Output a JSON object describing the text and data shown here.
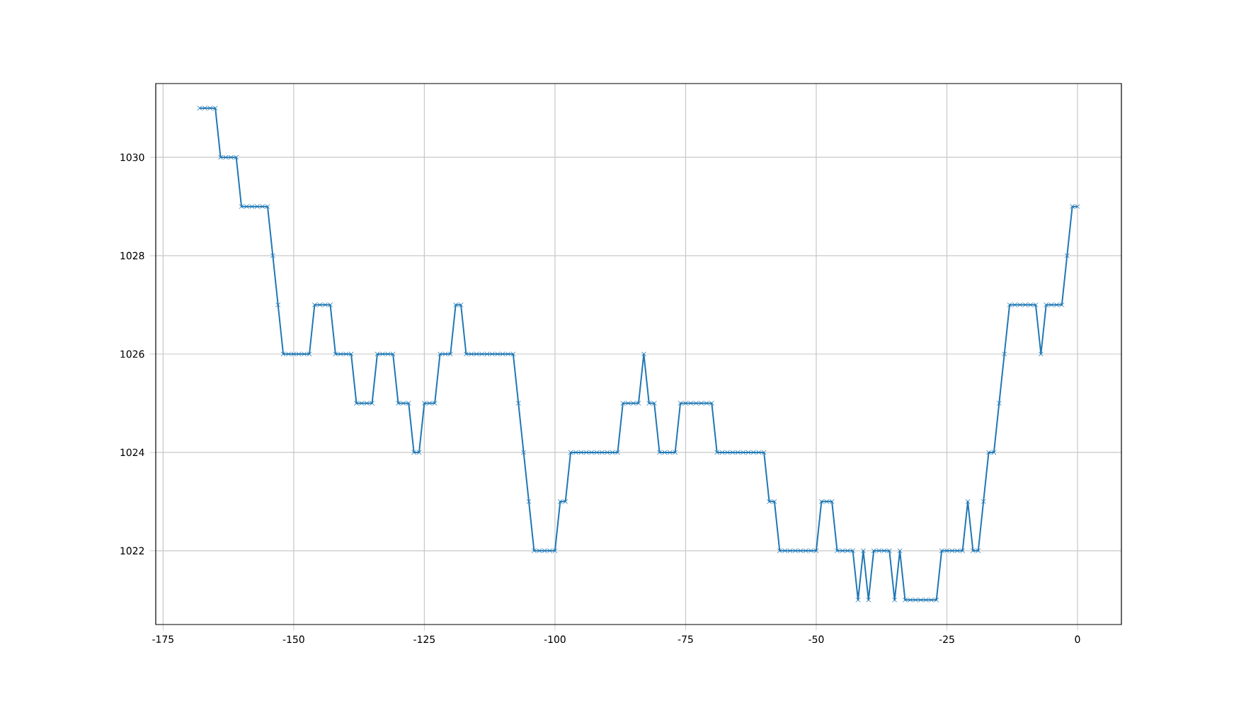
{
  "chart_data": {
    "type": "line",
    "x": [
      -168,
      -167,
      -166,
      -165,
      -164,
      -163,
      -162,
      -161,
      -160,
      -159,
      -158,
      -157,
      -156,
      -155,
      -154,
      -153,
      -152,
      -151,
      -150,
      -149,
      -148,
      -147,
      -146,
      -145,
      -144,
      -143,
      -142,
      -141,
      -140,
      -139,
      -138,
      -137,
      -136,
      -135,
      -134,
      -133,
      -132,
      -131,
      -130,
      -129,
      -128,
      -127,
      -126,
      -125,
      -124,
      -123,
      -122,
      -121,
      -120,
      -119,
      -118,
      -117,
      -116,
      -115,
      -114,
      -113,
      -112,
      -111,
      -110,
      -109,
      -108,
      -107,
      -106,
      -105,
      -104,
      -103,
      -102,
      -101,
      -100,
      -99,
      -98,
      -97,
      -96,
      -95,
      -94,
      -93,
      -92,
      -91,
      -90,
      -89,
      -88,
      -87,
      -86,
      -85,
      -84,
      -83,
      -82,
      -81,
      -80,
      -79,
      -78,
      -77,
      -76,
      -75,
      -74,
      -73,
      -72,
      -71,
      -70,
      -69,
      -68,
      -67,
      -66,
      -65,
      -64,
      -63,
      -62,
      -61,
      -60,
      -59,
      -58,
      -57,
      -56,
      -55,
      -54,
      -53,
      -52,
      -51,
      -50,
      -49,
      -48,
      -47,
      -46,
      -45,
      -44,
      -43,
      -42,
      -41,
      -40,
      -39,
      -38,
      -37,
      -36,
      -35,
      -34,
      -33,
      -32,
      -31,
      -30,
      -29,
      -28,
      -27,
      -26,
      -25,
      -24,
      -23,
      -22,
      -21,
      -20,
      -19,
      -18,
      -17,
      -16,
      -15,
      -14,
      -13,
      -12,
      -11,
      -10,
      -9,
      -8,
      -7,
      -6,
      -5,
      -4,
      -3,
      -2,
      -1,
      0
    ],
    "series": [
      {
        "color": "#1f77b4",
        "values": [
          1031,
          1031,
          1031,
          1031,
          1030,
          1030,
          1030,
          1030,
          1029,
          1029,
          1029,
          1029,
          1029,
          1029,
          1028,
          1027,
          1026,
          1026,
          1026,
          1026,
          1026,
          1026,
          1027,
          1027,
          1027,
          1027,
          1026,
          1026,
          1026,
          1026,
          1025,
          1025,
          1025,
          1025,
          1026,
          1026,
          1026,
          1026,
          1025,
          1025,
          1025,
          1024,
          1024,
          1025,
          1025,
          1025,
          1026,
          1026,
          1026,
          1027,
          1027,
          1026,
          1026,
          1026,
          1026,
          1026,
          1026,
          1026,
          1026,
          1026,
          1026,
          1025,
          1024,
          1023,
          1022,
          1022,
          1022,
          1022,
          1022,
          1023,
          1023,
          1024,
          1024,
          1024,
          1024,
          1024,
          1024,
          1024,
          1024,
          1024,
          1024,
          1025,
          1025,
          1025,
          1025,
          1026,
          1025,
          1025,
          1024,
          1024,
          1024,
          1024,
          1025,
          1025,
          1025,
          1025,
          1025,
          1025,
          1025,
          1024,
          1024,
          1024,
          1024,
          1024,
          1024,
          1024,
          1024,
          1024,
          1024,
          1023,
          1023,
          1022,
          1022,
          1022,
          1022,
          1022,
          1022,
          1022,
          1022,
          1023,
          1023,
          1023,
          1022,
          1022,
          1022,
          1022,
          1021,
          1022,
          1021,
          1022,
          1022,
          1022,
          1022,
          1021,
          1022,
          1021,
          1021,
          1021,
          1021,
          1021,
          1021,
          1021,
          1022,
          1022,
          1022,
          1022,
          1022,
          1023,
          1022,
          1022,
          1023,
          1024,
          1024,
          1025,
          1026,
          1027,
          1027,
          1027,
          1027,
          1027,
          1027,
          1026,
          1027,
          1027,
          1027,
          1027,
          1028,
          1029,
          1029
        ]
      }
    ],
    "xlim": [
      -176.4,
      8.4
    ],
    "ylim": [
      1020.5,
      1031.5
    ],
    "xticks": [
      -175,
      -150,
      -125,
      -100,
      -75,
      -50,
      -25,
      0
    ],
    "yticks": [
      1022,
      1024,
      1026,
      1028,
      1030
    ],
    "grid": true,
    "marker": "cross",
    "line_style": "solid"
  }
}
